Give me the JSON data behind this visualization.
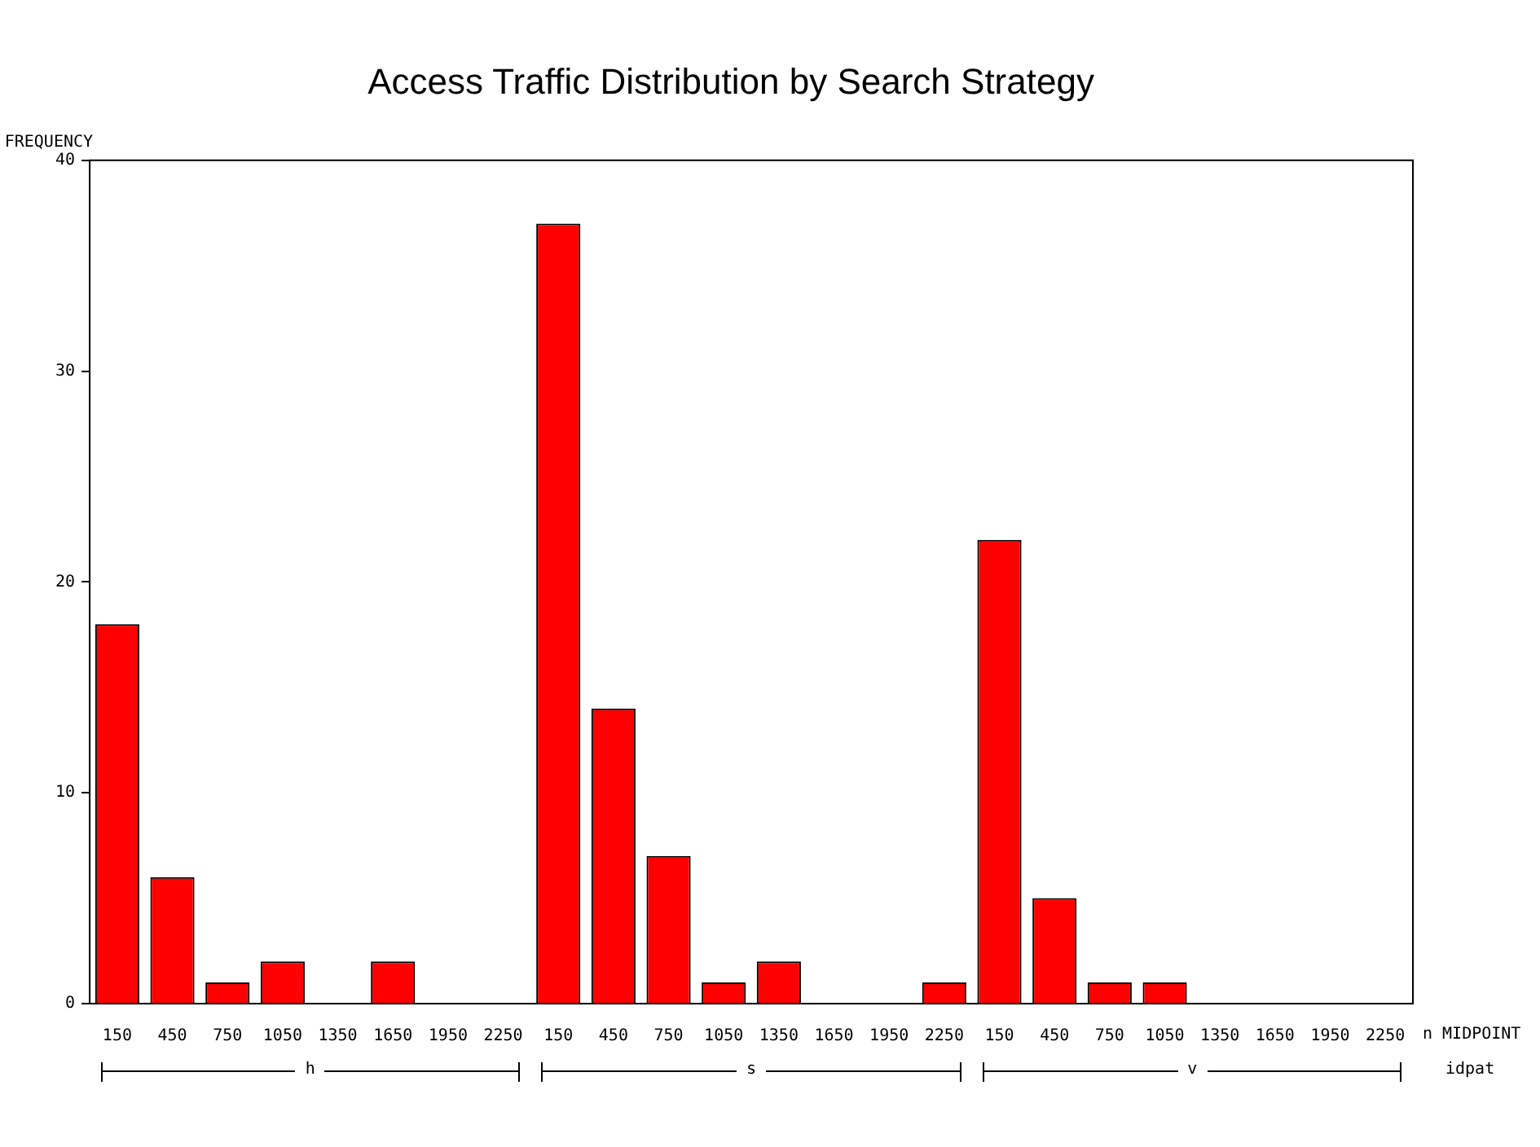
{
  "chart_data": {
    "type": "bar",
    "title": "Access Traffic Distribution by Search Strategy",
    "ylabel": "FREQUENCY",
    "xlabel": "n MIDPOINT",
    "categories": [
      "150",
      "450",
      "750",
      "1050",
      "1350",
      "1650",
      "1950",
      "2250",
      "150",
      "450",
      "750",
      "1050",
      "1350",
      "1650",
      "1950",
      "2250",
      "150",
      "450",
      "750",
      "1050",
      "1350",
      "1650",
      "1950",
      "2250"
    ],
    "values": [
      18,
      6,
      1,
      2,
      0,
      2,
      0,
      0,
      37,
      14,
      7,
      1,
      2,
      0,
      0,
      1,
      22,
      5,
      1,
      1,
      0,
      0,
      0,
      0
    ],
    "color": "#ff0000",
    "ylim": [
      0,
      40
    ],
    "yticks": [
      0,
      10,
      20,
      30,
      40
    ],
    "grid": false,
    "legend": false,
    "annotations": [
      "h",
      "s",
      "v",
      "idpat"
    ]
  }
}
